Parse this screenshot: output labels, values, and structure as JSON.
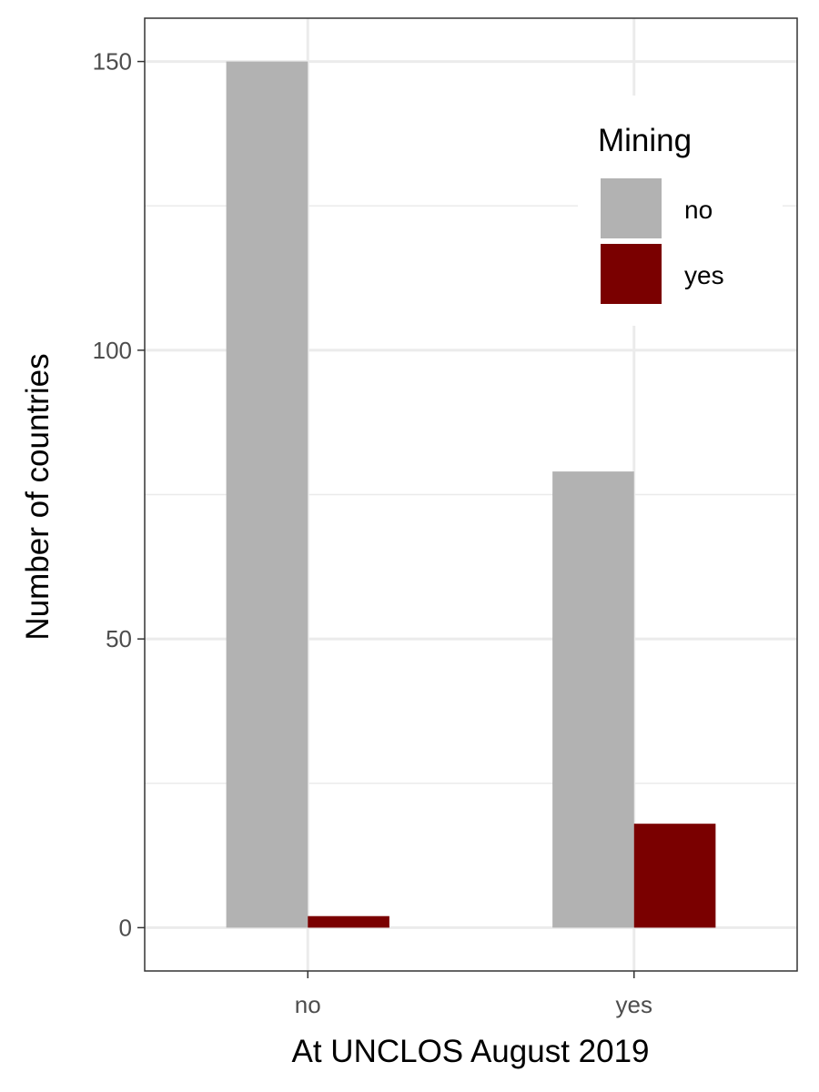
{
  "chart_data": {
    "type": "bar",
    "xlabel": "At UNCLOS August 2019",
    "ylabel": "Number of countries",
    "categories": [
      "no",
      "yes"
    ],
    "series": [
      {
        "name": "no",
        "color": "#b2b2b2",
        "values": [
          150,
          79
        ]
      },
      {
        "name": "yes",
        "color": "#7a0000",
        "values": [
          2,
          18
        ]
      }
    ],
    "ylim": [
      -7.5,
      157.5
    ],
    "yticks": [
      0,
      50,
      100,
      150
    ],
    "ytick_labels": [
      "0",
      "50",
      "100",
      "150"
    ],
    "grid": true,
    "legend": {
      "title": "Mining",
      "placement": "top-right"
    }
  }
}
